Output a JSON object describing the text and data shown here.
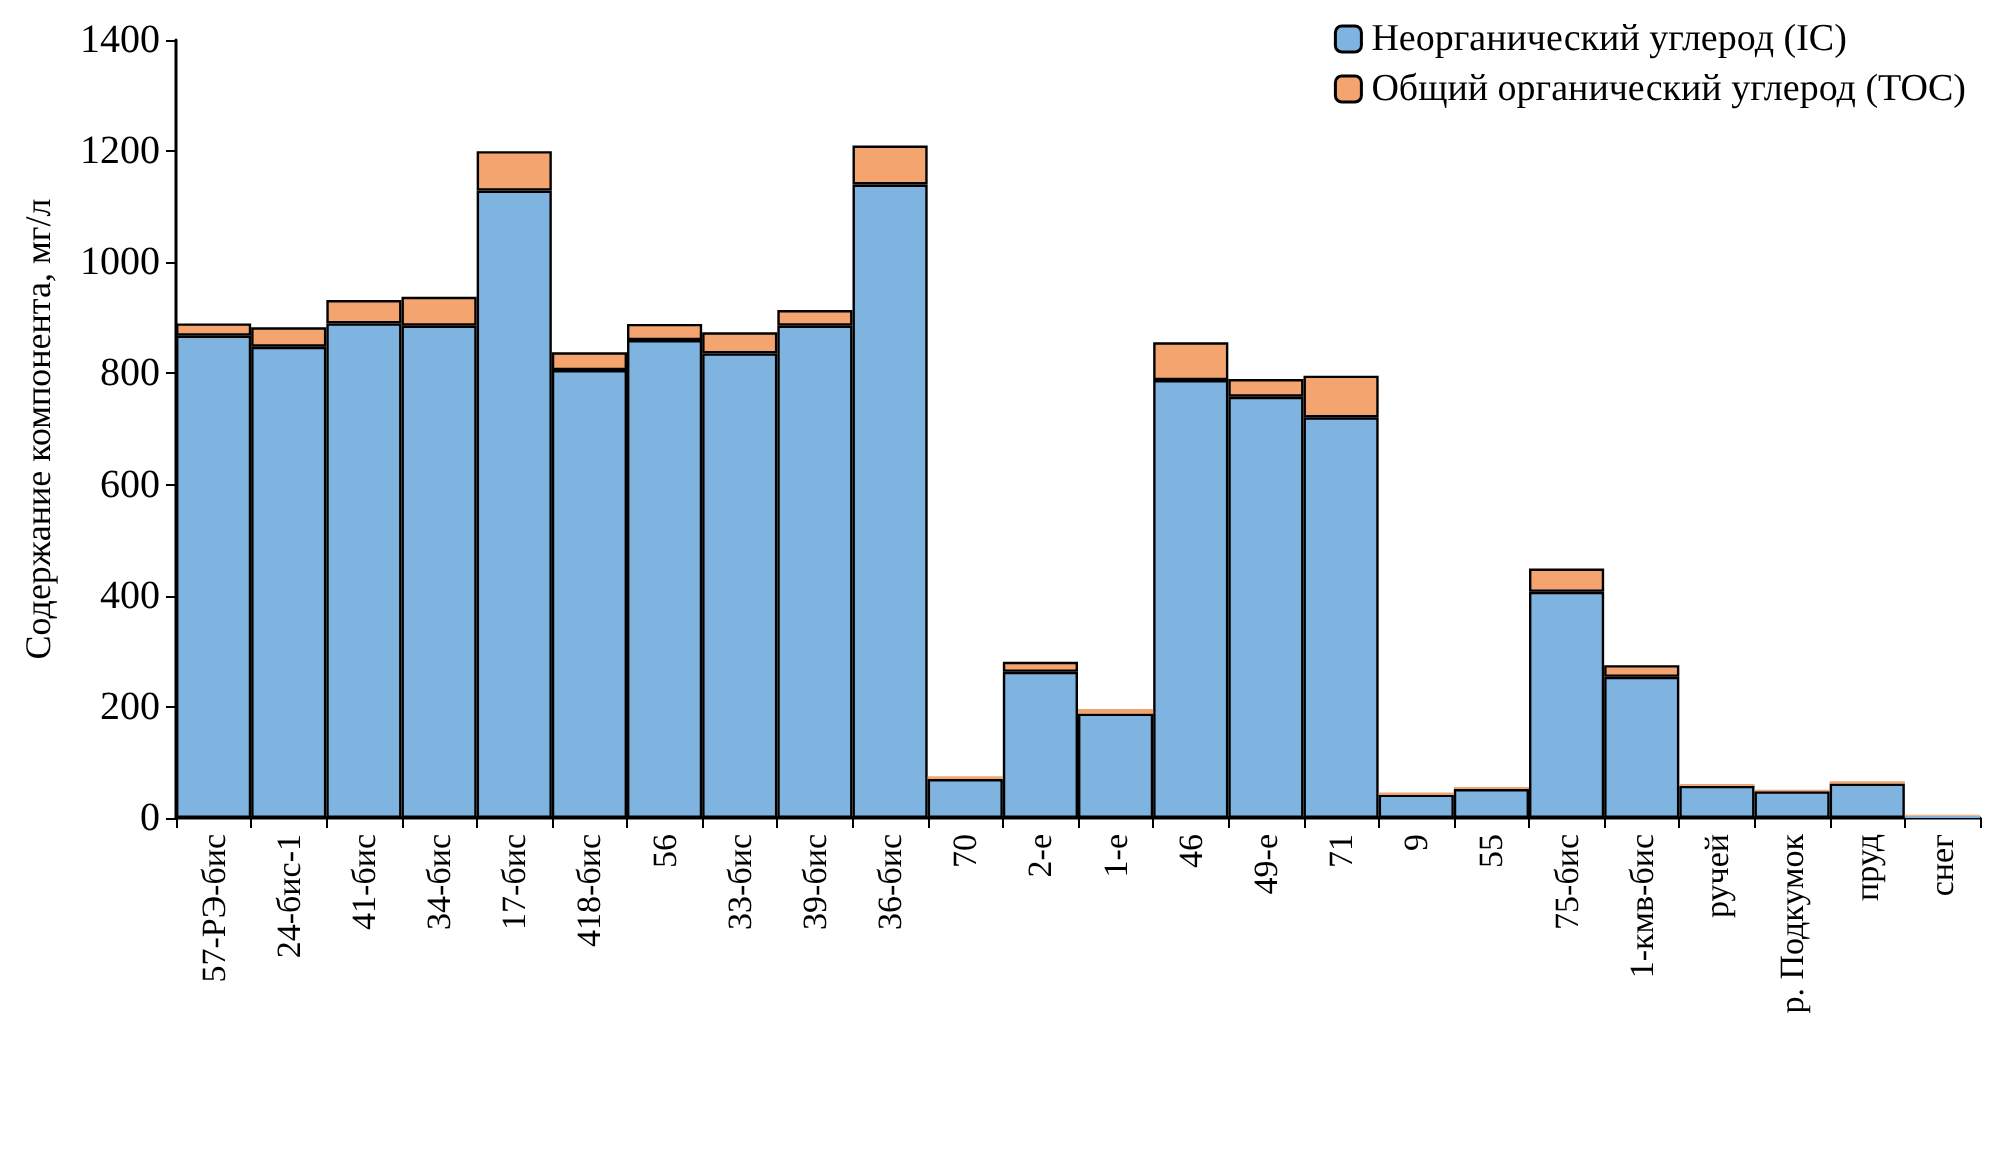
{
  "chart_data": {
    "type": "bar",
    "stacked": true,
    "ylabel": "Содержание компонента, мг/л",
    "categories": [
      "57-РЭ-бис",
      "24-бис-1",
      "41-бис",
      "34-бис",
      "17-бис",
      "418-бис",
      "56",
      "33-бис",
      "39-бис",
      "36-бис",
      "70",
      "2-е",
      "1-е",
      "46",
      "49-е",
      "71",
      "9",
      "55",
      "75-бис",
      "1-кмв-бис",
      "ручей",
      "р. Подкумок",
      "пруд",
      "снег"
    ],
    "series": [
      {
        "name": "Неорганический углерод (IC)",
        "color": "#7fb3e0",
        "values": [
          868,
          848,
          890,
          886,
          1129,
          806,
          860,
          836,
          886,
          1140,
          70,
          263,
          188,
          788,
          758,
          721,
          42,
          52,
          407,
          254,
          58,
          48,
          62,
          4
        ]
      },
      {
        "name": "Общий органический углерод (TOC)",
        "color": "#f4a46e",
        "values": [
          22,
          35,
          42,
          52,
          71,
          32,
          29,
          38,
          28,
          70,
          5,
          18,
          8,
          68,
          32,
          75,
          4,
          4,
          42,
          21,
          3,
          3,
          4,
          2
        ]
      }
    ],
    "ylim": [
      0,
      1400
    ],
    "yticks": [
      0,
      200,
      400,
      600,
      800,
      1000,
      1200,
      1400
    ],
    "grid": false,
    "legend": "top right"
  }
}
